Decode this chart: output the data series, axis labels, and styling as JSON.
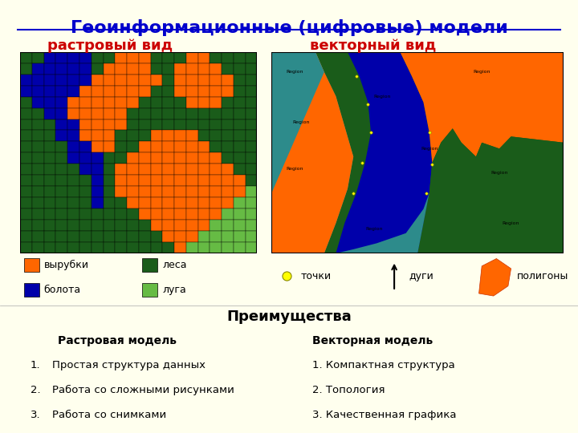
{
  "title": "Геоинформационные (цифровые) модели",
  "title_color": "#0000CC",
  "title_fontsize": 16,
  "bg_color": "#FFFFEE",
  "upper_bg": "#FFFFEE",
  "raster_label": "растровый вид",
  "vector_label": "векторный вид",
  "label_color": "#CC0000",
  "label_fontsize": 13,
  "legend_items": [
    {
      "label": "вырубки",
      "color": "#FF6600"
    },
    {
      "label": "болота",
      "color": "#0000AA"
    },
    {
      "label": "леса",
      "color": "#1A5C1A"
    },
    {
      "label": "луга",
      "color": "#66BB44"
    }
  ],
  "preimushchestva_title": "Преимущества",
  "raster_model_title": "Растровая модель",
  "vector_model_title": "Векторная модель",
  "raster_items": [
    "Простая структура данных",
    "Работа со сложными рисунками",
    "Работа со снимками"
  ],
  "vector_items": [
    "Компактная структура",
    "Топология",
    "Качественная графика"
  ],
  "bottom_bg": "#FFFFFF",
  "C_orange": "#FF6600",
  "C_blue": "#0000AA",
  "C_dkgrn": "#1A5C1A",
  "C_ltgrn": "#66BB44",
  "C_teal": "#2D8B8B",
  "dot_color": "#FFFF00",
  "dot_edge": "#888800"
}
